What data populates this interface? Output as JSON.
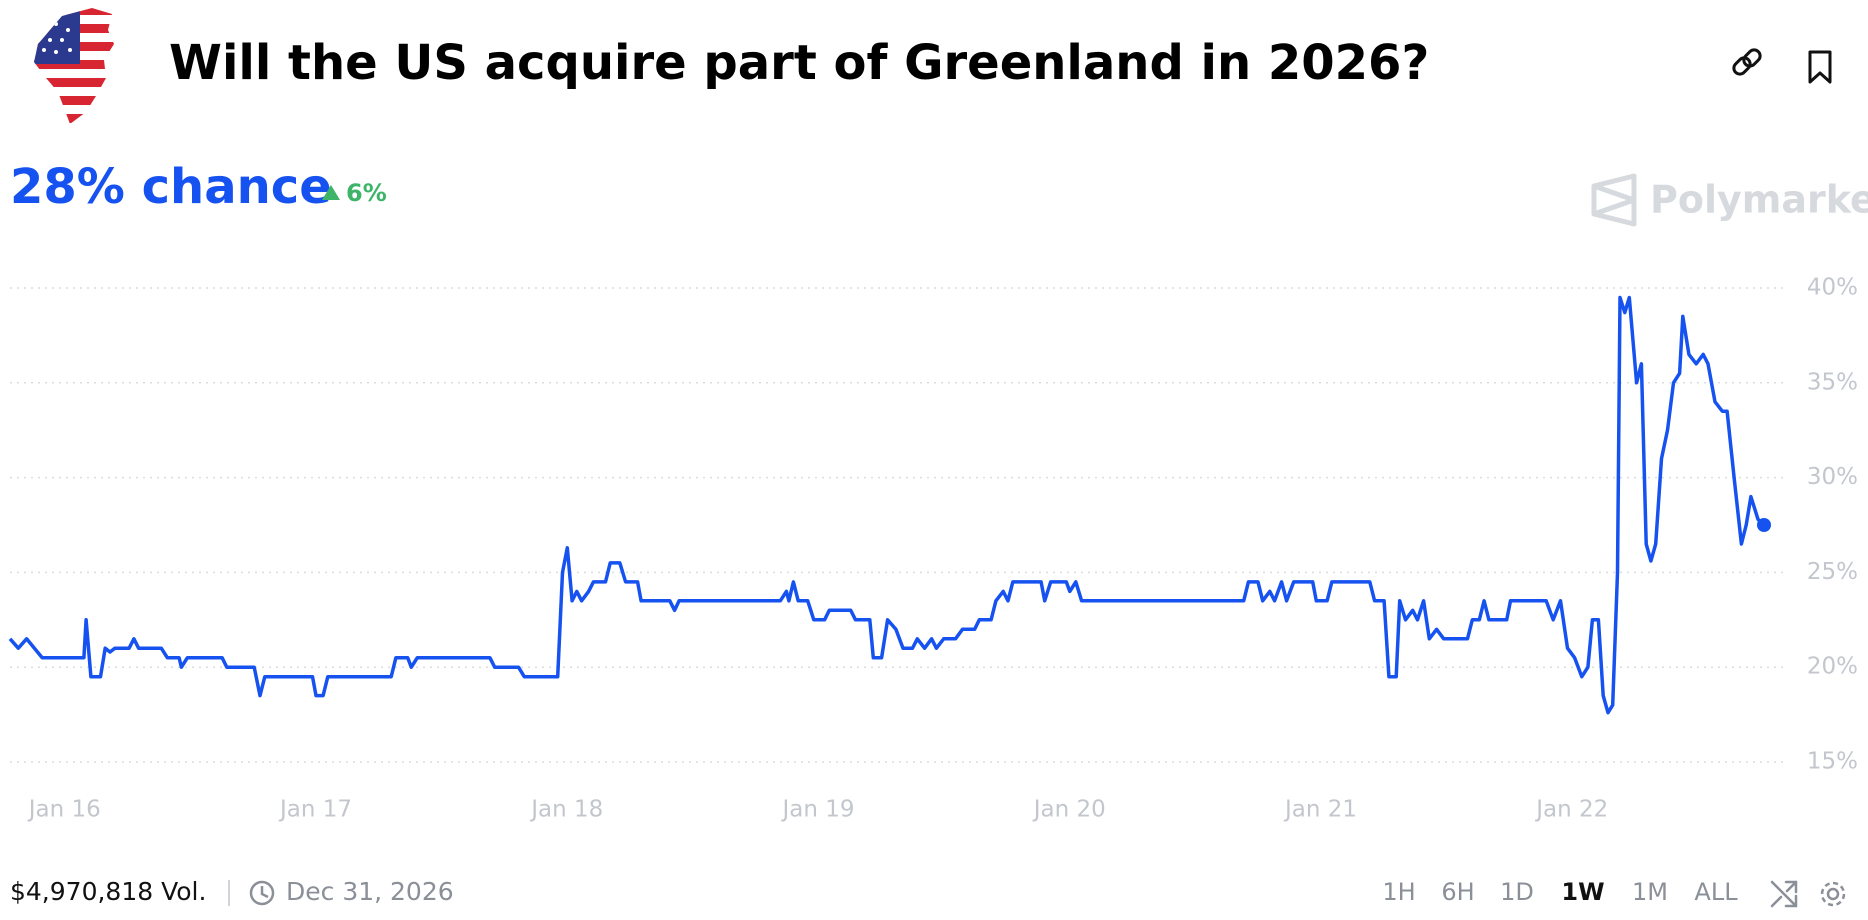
{
  "header": {
    "title": "Will the US acquire part of Greenland in 2026?"
  },
  "summary": {
    "chance": "28% chance",
    "change": "6%",
    "brand": "Polymarket"
  },
  "footer": {
    "volume": "$4,970,818 Vol.",
    "end_date": "Dec 31, 2026",
    "ranges": [
      "1H",
      "6H",
      "1D",
      "1W",
      "1M",
      "ALL"
    ],
    "selected_range": "1W"
  },
  "chart_data": {
    "type": "line",
    "color": "#1652f0",
    "grid": true,
    "xlim": [
      -0.218,
      6.763
    ],
    "xticks": [
      {
        "value": 0,
        "label": "Jan 16"
      },
      {
        "value": 1,
        "label": "Jan 17"
      },
      {
        "value": 2,
        "label": "Jan 18"
      },
      {
        "value": 3,
        "label": "Jan 19"
      },
      {
        "value": 4,
        "label": "Jan 20"
      },
      {
        "value": 5,
        "label": "Jan 21"
      },
      {
        "value": 6,
        "label": "Jan 22"
      }
    ],
    "ylim": [
      15,
      40
    ],
    "yticks": [
      {
        "value": 15,
        "label": "15%"
      },
      {
        "value": 20,
        "label": "20%"
      },
      {
        "value": 25,
        "label": "25%"
      },
      {
        "value": 30,
        "label": "30%"
      },
      {
        "value": 35,
        "label": "35%"
      },
      {
        "value": 40,
        "label": "40%"
      }
    ],
    "x": [
      -0.218,
      -0.185,
      -0.152,
      -0.09,
      0.076,
      0.085,
      0.104,
      0.142,
      0.161,
      0.18,
      0.199,
      0.256,
      0.275,
      0.294,
      0.384,
      0.408,
      0.455,
      0.464,
      0.488,
      0.626,
      0.645,
      0.754,
      0.777,
      0.796,
      0.986,
      1.0,
      1.028,
      1.047,
      1.299,
      1.318,
      1.365,
      1.379,
      1.403,
      1.692,
      1.711,
      1.806,
      1.829,
      1.962,
      1.981,
      2.0,
      2.019,
      2.038,
      2.057,
      2.085,
      2.104,
      2.152,
      2.171,
      2.209,
      2.232,
      2.28,
      2.294,
      2.408,
      2.427,
      2.445,
      2.848,
      2.872,
      2.882,
      2.9,
      2.919,
      2.957,
      2.981,
      3.024,
      3.043,
      3.128,
      3.147,
      3.204,
      3.218,
      3.251,
      3.275,
      3.308,
      3.336,
      3.374,
      3.393,
      3.422,
      3.45,
      3.469,
      3.498,
      3.545,
      3.573,
      3.621,
      3.64,
      3.687,
      3.706,
      3.735,
      3.754,
      3.773,
      3.886,
      3.9,
      3.924,
      3.986,
      4.0,
      4.024,
      4.047,
      4.692,
      4.711,
      4.749,
      4.768,
      4.796,
      4.815,
      4.843,
      4.863,
      4.891,
      4.967,
      4.981,
      5.024,
      5.043,
      5.194,
      5.213,
      5.251,
      5.27,
      5.299,
      5.313,
      5.336,
      5.365,
      5.384,
      5.408,
      5.431,
      5.46,
      5.488,
      5.583,
      5.602,
      5.63,
      5.649,
      5.668,
      5.739,
      5.754,
      5.896,
      5.924,
      5.953,
      5.981,
      6.009,
      6.038,
      6.062,
      6.08,
      6.104,
      6.123,
      6.142,
      6.161,
      6.18,
      6.19,
      6.209,
      6.227,
      6.256,
      6.275,
      6.294,
      6.313,
      6.332,
      6.355,
      6.379,
      6.403,
      6.427,
      6.44,
      6.464,
      6.493,
      6.521,
      6.54,
      6.568,
      6.597,
      6.616,
      6.644,
      6.673,
      6.692,
      6.711,
      6.739,
      6.763
    ],
    "values": [
      21.5,
      21.0,
      21.5,
      20.5,
      20.5,
      22.5,
      19.5,
      19.5,
      21.0,
      20.8,
      21.0,
      21.0,
      21.5,
      21.0,
      21.0,
      20.5,
      20.5,
      20.0,
      20.5,
      20.5,
      20.0,
      20.0,
      18.5,
      19.5,
      19.5,
      18.5,
      18.5,
      19.5,
      19.5,
      20.5,
      20.5,
      20.0,
      20.5,
      20.5,
      20.0,
      20.0,
      19.5,
      19.5,
      25.0,
      26.3,
      23.5,
      24.0,
      23.5,
      24.0,
      24.5,
      24.5,
      25.5,
      25.5,
      24.5,
      24.5,
      23.5,
      23.5,
      23.0,
      23.5,
      23.5,
      24.0,
      23.5,
      24.5,
      23.5,
      23.5,
      22.5,
      22.5,
      23.0,
      23.0,
      22.5,
      22.5,
      20.5,
      20.5,
      22.5,
      22.0,
      21.0,
      21.0,
      21.5,
      21.0,
      21.5,
      21.0,
      21.5,
      21.5,
      22.0,
      22.0,
      22.5,
      22.5,
      23.5,
      24.0,
      23.5,
      24.5,
      24.5,
      23.5,
      24.5,
      24.5,
      24.0,
      24.5,
      23.5,
      23.5,
      24.5,
      24.5,
      23.5,
      24.0,
      23.5,
      24.5,
      23.5,
      24.5,
      24.5,
      23.5,
      23.5,
      24.5,
      24.5,
      23.5,
      23.5,
      19.5,
      19.5,
      23.5,
      22.5,
      23.0,
      22.5,
      23.5,
      21.5,
      22.0,
      21.5,
      21.5,
      22.5,
      22.5,
      23.5,
      22.5,
      22.5,
      23.5,
      23.5,
      22.5,
      23.5,
      21.0,
      20.5,
      19.5,
      20.0,
      22.5,
      22.5,
      18.5,
      17.6,
      18.0,
      25.0,
      39.5,
      38.7,
      39.5,
      35.0,
      36.0,
      26.5,
      25.6,
      26.5,
      31.0,
      32.5,
      35.0,
      35.5,
      38.5,
      36.5,
      36.0,
      36.5,
      36.0,
      34.0,
      33.5,
      33.5,
      30.0,
      26.5,
      27.5,
      29.0,
      27.8,
      27.5
    ]
  }
}
